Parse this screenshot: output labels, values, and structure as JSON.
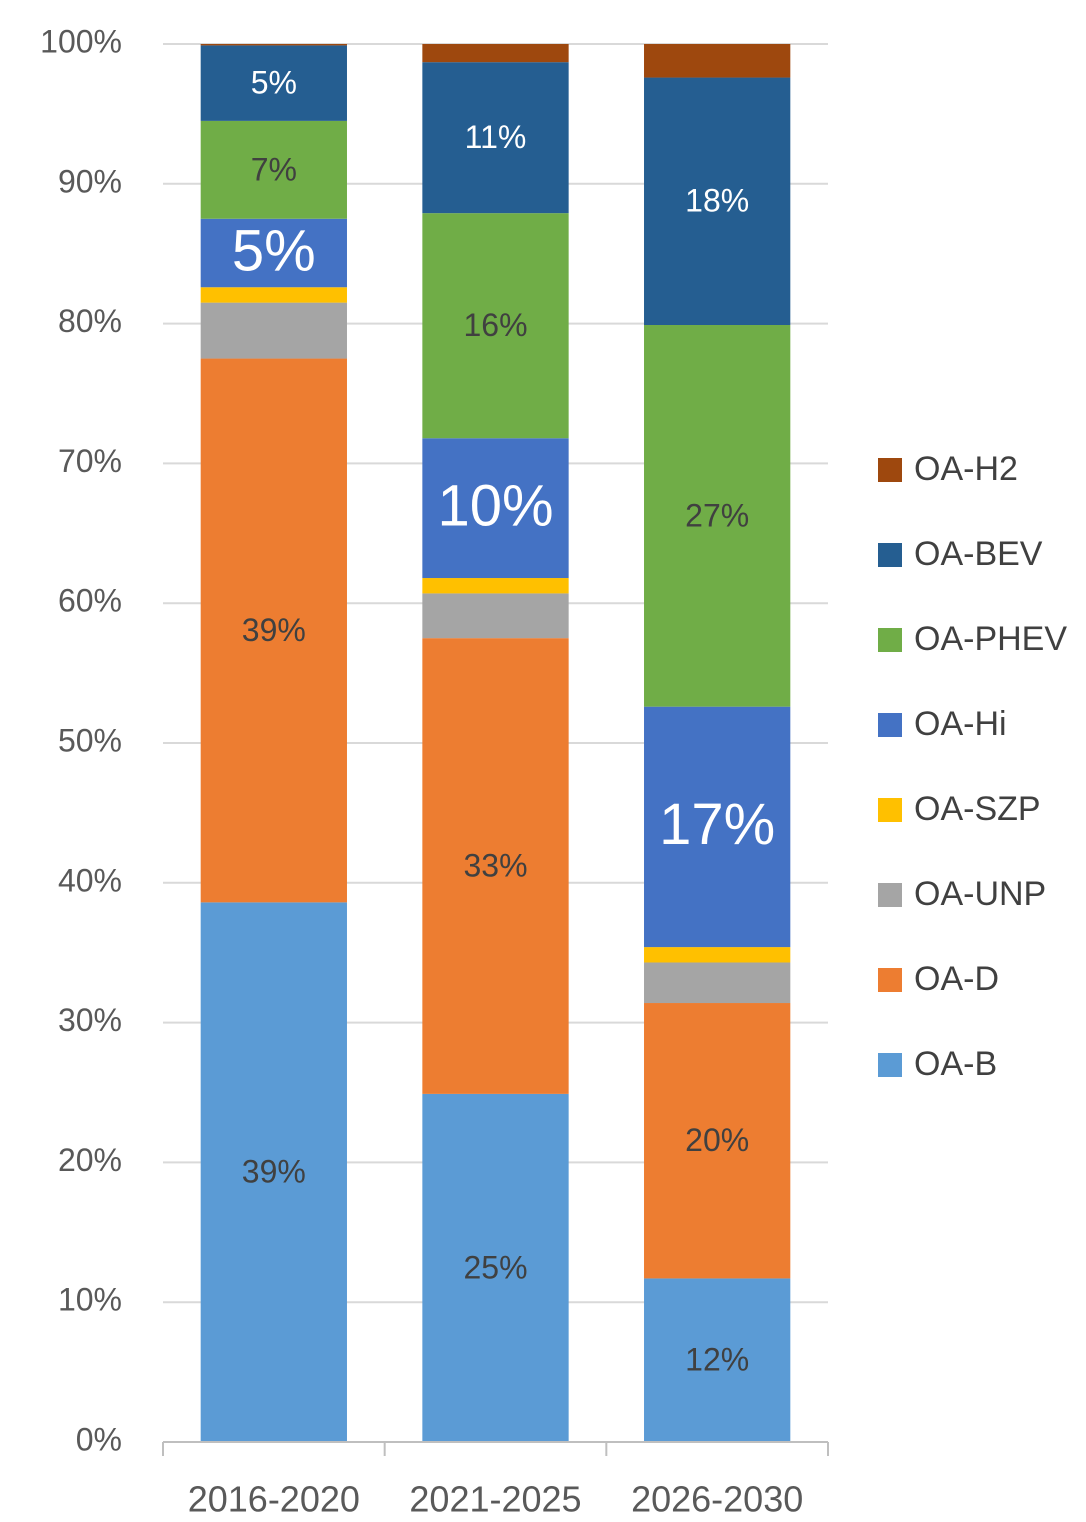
{
  "chart_data": {
    "type": "stacked_bar",
    "categories": [
      "2016-2020",
      "2021-2025",
      "2026-2030"
    ],
    "ylim": [
      0,
      100
    ],
    "yticks": [
      {
        "value": 0,
        "label": "0%"
      },
      {
        "value": 10,
        "label": "10%"
      },
      {
        "value": 20,
        "label": "20%"
      },
      {
        "value": 30,
        "label": "30%"
      },
      {
        "value": 40,
        "label": "40%"
      },
      {
        "value": 50,
        "label": "50%"
      },
      {
        "value": 60,
        "label": "60%"
      },
      {
        "value": 70,
        "label": "70%"
      },
      {
        "value": 80,
        "label": "80%"
      },
      {
        "value": 90,
        "label": "90%"
      },
      {
        "value": 100,
        "label": "100%"
      }
    ],
    "grid": true,
    "legend": "right",
    "series": [
      {
        "name": "OA-B",
        "color": "#5b9bd5",
        "label_color": "#404040",
        "values": [
          38.6,
          24.9,
          11.7
        ],
        "value_labels": [
          "39%",
          "25%",
          "12%"
        ]
      },
      {
        "name": "OA-D",
        "color": "#ed7d31",
        "label_color": "#404040",
        "values": [
          38.9,
          32.6,
          19.7
        ],
        "value_labels": [
          "39%",
          "33%",
          "20%"
        ]
      },
      {
        "name": "OA-UNP",
        "color": "#a5a5a5",
        "label_color": "#404040",
        "values": [
          4.0,
          3.2,
          2.9
        ],
        "value_labels": [
          null,
          null,
          null
        ]
      },
      {
        "name": "OA-SZP",
        "color": "#ffc000",
        "label_color": "#404040",
        "values": [
          1.1,
          1.1,
          1.1
        ],
        "value_labels": [
          null,
          null,
          null
        ]
      },
      {
        "name": "OA-Hi",
        "color": "#4472c4",
        "label_color": "#ffffff",
        "values": [
          4.9,
          10.0,
          17.2
        ],
        "value_labels": [
          "5%",
          "10%",
          "17%"
        ]
      },
      {
        "name": "OA-PHEV",
        "color": "#70ad47",
        "label_color": "#404040",
        "values": [
          7.0,
          16.1,
          27.3
        ],
        "value_labels": [
          "7%",
          "16%",
          "27%"
        ]
      },
      {
        "name": "OA-BEV",
        "color": "#255e91",
        "label_color": "#ffffff",
        "values": [
          5.4,
          10.8,
          17.7
        ],
        "value_labels": [
          "5%",
          "11%",
          "18%"
        ]
      },
      {
        "name": "OA-H2",
        "color": "#9e480e",
        "label_color": "#404040",
        "values": [
          0.1,
          1.3,
          2.4
        ],
        "value_labels": [
          null,
          null,
          null
        ]
      }
    ]
  }
}
